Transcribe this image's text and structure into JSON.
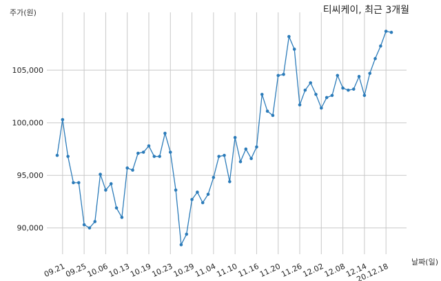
{
  "chart_data": {
    "type": "line",
    "title": "티씨케이, 최근 3개월",
    "ylabel": "주가(원)",
    "xlabel": "날짜(일)",
    "ylim": [
      87500,
      110500
    ],
    "yticks": [
      90000,
      95000,
      100000,
      105000
    ],
    "ytick_labels": [
      "90,000",
      "95,000",
      "100,000",
      "105,000"
    ],
    "xticks": [
      {
        "index": 1,
        "label": "09.21"
      },
      {
        "index": 5,
        "label": "09.25"
      },
      {
        "index": 9,
        "label": "10.06"
      },
      {
        "index": 13,
        "label": "10.13"
      },
      {
        "index": 17,
        "label": "10.19"
      },
      {
        "index": 21,
        "label": "10.23"
      },
      {
        "index": 25,
        "label": "10.29"
      },
      {
        "index": 29,
        "label": "11.04"
      },
      {
        "index": 33,
        "label": "11.10"
      },
      {
        "index": 37,
        "label": "11.16"
      },
      {
        "index": 41,
        "label": "11.20"
      },
      {
        "index": 45,
        "label": "11.26"
      },
      {
        "index": 49,
        "label": "12.02"
      },
      {
        "index": 53,
        "label": "12.08"
      },
      {
        "index": 57,
        "label": "12.14"
      },
      {
        "index": 61,
        "label": "20.12.18"
      }
    ],
    "grid": true,
    "color": "#2b7bb9",
    "series": [
      {
        "values": [
          96900,
          100300,
          96800,
          94300,
          94300,
          90300,
          90000,
          90600,
          95100,
          93600,
          94200,
          91900,
          91000,
          95700,
          95500,
          97100,
          97200,
          97800,
          96800,
          96800,
          99000,
          97200,
          93600,
          88400,
          89400,
          92700,
          93400,
          92400,
          93200,
          94800,
          96800,
          96900,
          94400,
          98600,
          96300,
          97500,
          96600,
          97700,
          102700,
          101100,
          100700,
          104500,
          104600,
          108200,
          107000,
          101700,
          103100,
          103800,
          102700,
          101400,
          102400,
          102600,
          104500,
          103300,
          103100,
          103200,
          104400,
          102600,
          104700,
          106100,
          107300,
          108700,
          108600
        ]
      }
    ]
  }
}
